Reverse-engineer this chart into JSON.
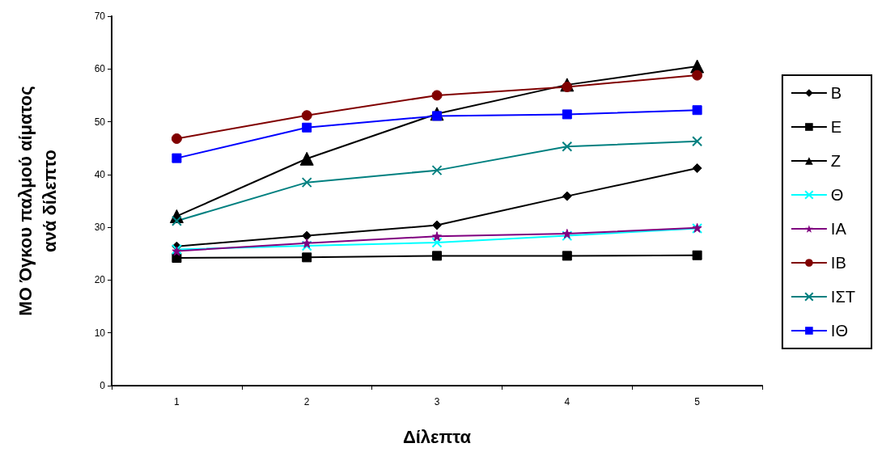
{
  "chart_data": {
    "type": "line",
    "xlabel": "Δίλεπτα",
    "ylabel": "ΜΟ Όγκου παλμού αίματος\nανά δίλεπτο",
    "categories": [
      "1",
      "2",
      "3",
      "4",
      "5"
    ],
    "series": [
      {
        "name": "Β",
        "color": "#000000",
        "marker": "diamond",
        "values": [
          26.4,
          28.4,
          30.4,
          35.9,
          41.2
        ]
      },
      {
        "name": "Ε",
        "color": "#000000",
        "marker": "square",
        "values": [
          24.2,
          24.3,
          24.6,
          24.6,
          24.7
        ]
      },
      {
        "name": "Ζ",
        "color": "#000000",
        "marker": "triangle",
        "values": [
          32.1,
          43.0,
          51.5,
          57.0,
          60.5
        ]
      },
      {
        "name": "Θ",
        "color": "#00ffff",
        "marker": "cross",
        "values": [
          25.8,
          26.5,
          27.1,
          28.4,
          29.8
        ]
      },
      {
        "name": "ΙΑ",
        "color": "#800080",
        "marker": "star",
        "values": [
          25.5,
          27.0,
          28.3,
          28.8,
          29.9
        ]
      },
      {
        "name": "ΙΒ",
        "color": "#800000",
        "marker": "circle",
        "values": [
          46.8,
          51.2,
          55.0,
          56.6,
          58.8
        ]
      },
      {
        "name": "ΙΣΤ",
        "color": "#008080",
        "marker": "cross",
        "values": [
          31.2,
          38.5,
          40.8,
          45.3,
          46.3
        ]
      },
      {
        "name": "ΙΘ",
        "color": "#0000ff",
        "marker": "square",
        "values": [
          43.1,
          48.9,
          51.1,
          51.4,
          52.2
        ]
      }
    ],
    "ylim": [
      0,
      70
    ],
    "yticks": [
      0,
      10,
      20,
      30,
      40,
      50,
      60,
      70
    ],
    "grid": false,
    "legend": "right"
  }
}
